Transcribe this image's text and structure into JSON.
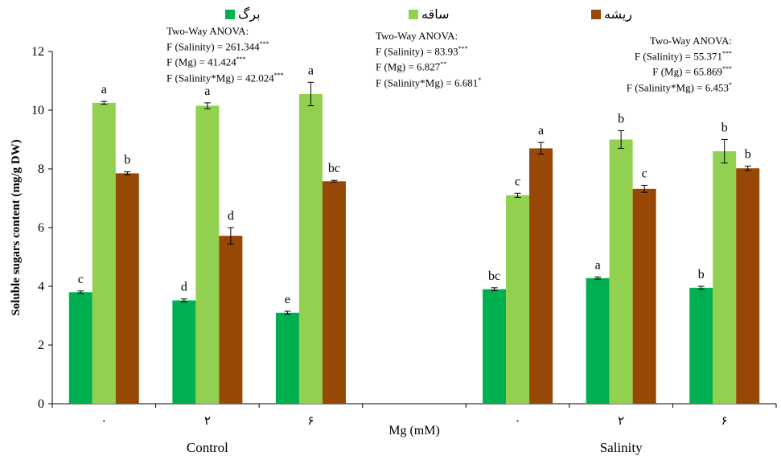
{
  "chart_data": {
    "type": "bar",
    "ylabel": "Soluble sugars content (mg/g DW)",
    "xlabel": "Mg (mM)",
    "ylim": [
      0,
      12
    ],
    "yticks": [
      0,
      2,
      4,
      6,
      8,
      10,
      12
    ],
    "groups": [
      {
        "name": "Control",
        "categories": [
          "۰",
          "۲",
          "۶"
        ]
      },
      {
        "name": "Salinity",
        "categories": [
          "۰",
          "۲",
          "۶"
        ]
      }
    ],
    "series": [
      {
        "name": "برگ",
        "color": "#00b050",
        "values": [
          3.8,
          3.52,
          3.1,
          3.9,
          4.28,
          3.95
        ],
        "errors": [
          0.04,
          0.05,
          0.05,
          0.05,
          0.04,
          0.05
        ],
        "letters": [
          "c",
          "d",
          "e",
          "bc",
          "a",
          "b"
        ]
      },
      {
        "name": "ساقه",
        "color": "#92d050",
        "values": [
          10.25,
          10.15,
          10.55,
          7.1,
          9.0,
          8.6
        ],
        "errors": [
          0.05,
          0.1,
          0.4,
          0.07,
          0.3,
          0.4
        ],
        "letters": [
          "a",
          "a",
          "a",
          "c",
          "b",
          "b"
        ]
      },
      {
        "name": "ریشه",
        "color": "#974706",
        "values": [
          7.85,
          5.72,
          7.58,
          8.7,
          7.32,
          8.02
        ],
        "errors": [
          0.05,
          0.28,
          0.03,
          0.2,
          0.12,
          0.07
        ],
        "letters": [
          "b",
          "d",
          "bc",
          "a",
          "c",
          "b"
        ]
      }
    ],
    "annotations": [
      {
        "title": "Two-Way ANOVA:",
        "lines": [
          {
            "text": "F (Salinity) = 261.344",
            "sig": "***"
          },
          {
            "text": "F (Mg) = 41.424",
            "sig": "***"
          },
          {
            "text": "F (Salinity*Mg) = 42.024",
            "sig": "***"
          }
        ]
      },
      {
        "title": "Two-Way ANOVA:",
        "lines": [
          {
            "text": "F (Salinity) = 83.93",
            "sig": "***"
          },
          {
            "text": "F (Mg) = 6.827",
            "sig": "**"
          },
          {
            "text": "F (Salinity*Mg) = 6.681",
            "sig": "*"
          }
        ]
      },
      {
        "title": "Two-Way ANOVA:",
        "lines": [
          {
            "text": "F (Salinity) = 55.371",
            "sig": "***"
          },
          {
            "text": "F (Mg) = 65.869",
            "sig": "***"
          },
          {
            "text": "F (Salinity*Mg) = 6.453",
            "sig": "*"
          }
        ]
      }
    ]
  }
}
